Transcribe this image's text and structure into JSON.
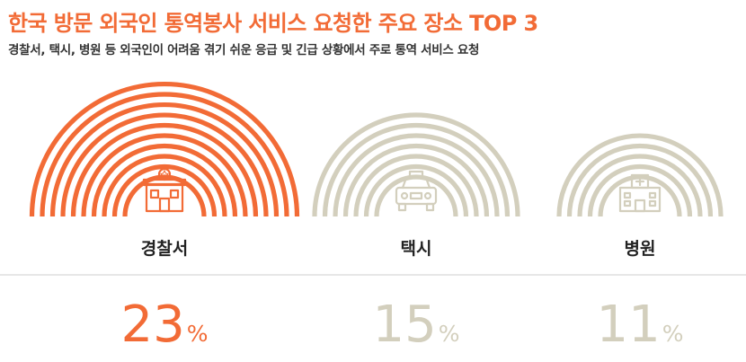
{
  "header": {
    "title": "한국 방문 외국인 통역봉사 서비스 요청한 주요 장소 TOP 3",
    "subtitle": "경찰서, 택시, 병원 등 외국인이 어려움 겪기 쉬운 응급 및 긴급 상황에서 주로 통역 서비스 요청"
  },
  "colors": {
    "accent": "#f26b36",
    "muted": "#d3cfbd",
    "text": "#222222",
    "divider": "#cfcfcf"
  },
  "chart_data": {
    "type": "bar",
    "categories": [
      "경찰서",
      "택시",
      "병원"
    ],
    "values": [
      23,
      15,
      11
    ],
    "unit": "%",
    "icons": [
      "police-station-icon",
      "taxi-icon",
      "hospital-icon"
    ],
    "highlight_index": 0,
    "title": "한국 방문 외국인 통역봉사 서비스 요청한 주요 장소 TOP 3",
    "subtitle": "경찰서, 택시, 병원 등 외국인이 어려움 겪기 쉬운 응급 및 긴급 상황에서 주로 통역 서비스 요청"
  }
}
